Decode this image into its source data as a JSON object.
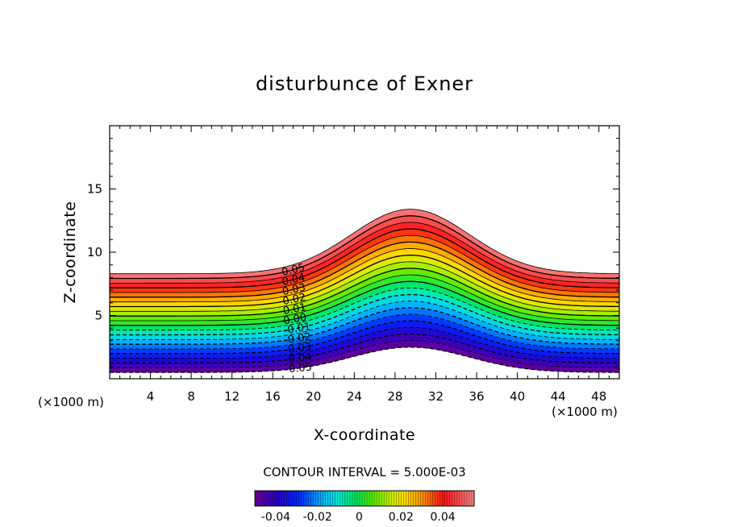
{
  "chart_data": {
    "type": "filled-contour",
    "title": "disturbunce of Exner",
    "xlabel": "X-coordinate",
    "ylabel": "Z-coordinate",
    "x_unit": "(×1000 m)",
    "x_unit_bottom": "(×1000 m)",
    "xlim": [
      0,
      50
    ],
    "ylim": [
      0,
      20
    ],
    "x_ticks": [
      4,
      8,
      12,
      16,
      20,
      24,
      28,
      32,
      36,
      40,
      44,
      48
    ],
    "y_ticks": [
      5,
      10,
      15
    ],
    "grid": false,
    "contour_interval_text": "CONTOUR INTERVAL = 5.000E-03",
    "value_range": [
      -0.05,
      0.055
    ],
    "contour_levels": [
      -0.05,
      -0.045,
      -0.04,
      -0.035,
      -0.03,
      -0.025,
      -0.02,
      -0.015,
      -0.01,
      -0.005,
      0.0,
      0.005,
      0.01,
      0.015,
      0.02,
      0.025,
      0.03,
      0.035,
      0.04,
      0.045,
      0.05,
      0.055
    ],
    "contour_labels": [
      "0.05",
      "0.04",
      "0.03",
      "0.02",
      "0.01",
      "0.00",
      "-0.01",
      "-0.02",
      "-0.03",
      "-0.04",
      "-0.05"
    ],
    "terrain": {
      "shape": "bell-shaped ridge",
      "base_height_edge": 0.5,
      "peak_height": 2.5,
      "peak_x": 29.5
    },
    "field_top_height": {
      "edge": 8.3,
      "peak": 13.4
    },
    "colorbar": {
      "ticks": [
        "-0.04",
        "-0.02",
        "0",
        "0.02",
        "0.04"
      ],
      "tick_values": [
        -0.04,
        -0.02,
        0,
        0.02,
        0.04
      ],
      "colormap": "rainbow (purple-blue-cyan-green-yellow-orange-red-pink)"
    }
  }
}
